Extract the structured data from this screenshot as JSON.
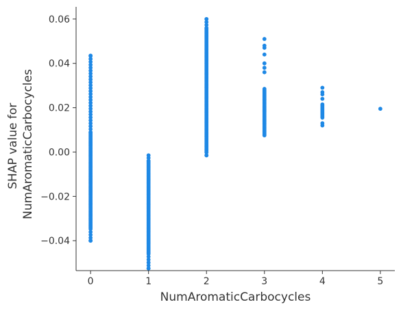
{
  "chart_data": {
    "type": "scatter",
    "xlabel": "NumAromaticCarbocycles",
    "ylabel_lines": [
      "SHAP value for",
      "NumAromaticCarbocycles"
    ],
    "xlim": [
      -0.25,
      5.25
    ],
    "ylim": [
      -0.0535,
      0.0655
    ],
    "x_ticks": [
      0,
      1,
      2,
      3,
      4,
      5
    ],
    "y_ticks": [
      -0.04,
      -0.02,
      0.0,
      0.02,
      0.04,
      0.06
    ],
    "x_tick_labels": [
      "0",
      "1",
      "2",
      "3",
      "4",
      "5"
    ],
    "y_tick_labels": [
      "−0.04",
      "−0.02",
      "0.00",
      "0.02",
      "0.04",
      "0.06"
    ],
    "grid": false,
    "point_color": "#1e88e5",
    "groups": [
      {
        "x": 0,
        "y_min": -0.04,
        "y_max": 0.0435,
        "dense_ranges": [
          [
            -0.034,
            0.009
          ]
        ]
      },
      {
        "x": 1,
        "y_min": -0.0525,
        "y_max": -0.0015,
        "dense_ranges": [
          [
            -0.046,
            -0.004
          ]
        ]
      },
      {
        "x": 2,
        "y_min": -0.0015,
        "y_max": 0.06,
        "dense_ranges": [
          [
            0.0,
            0.056
          ]
        ]
      },
      {
        "x": 3,
        "y_min": 0.0065,
        "y_max": 0.051,
        "dense_ranges": [
          [
            0.0075,
            0.029
          ]
        ],
        "sparse_points": [
          0.036,
          0.038,
          0.04,
          0.044,
          0.047,
          0.048,
          0.051
        ]
      },
      {
        "x": 4,
        "y_min": 0.012,
        "y_max": 0.029,
        "dense_ranges": [
          [
            0.0155,
            0.022
          ]
        ],
        "sparse_points": [
          0.012,
          0.013,
          0.024,
          0.026,
          0.027,
          0.029
        ]
      },
      {
        "x": 5,
        "y_min": 0.0195,
        "y_max": 0.0195,
        "dense_ranges": [],
        "sparse_points": [
          0.0195
        ]
      }
    ]
  }
}
